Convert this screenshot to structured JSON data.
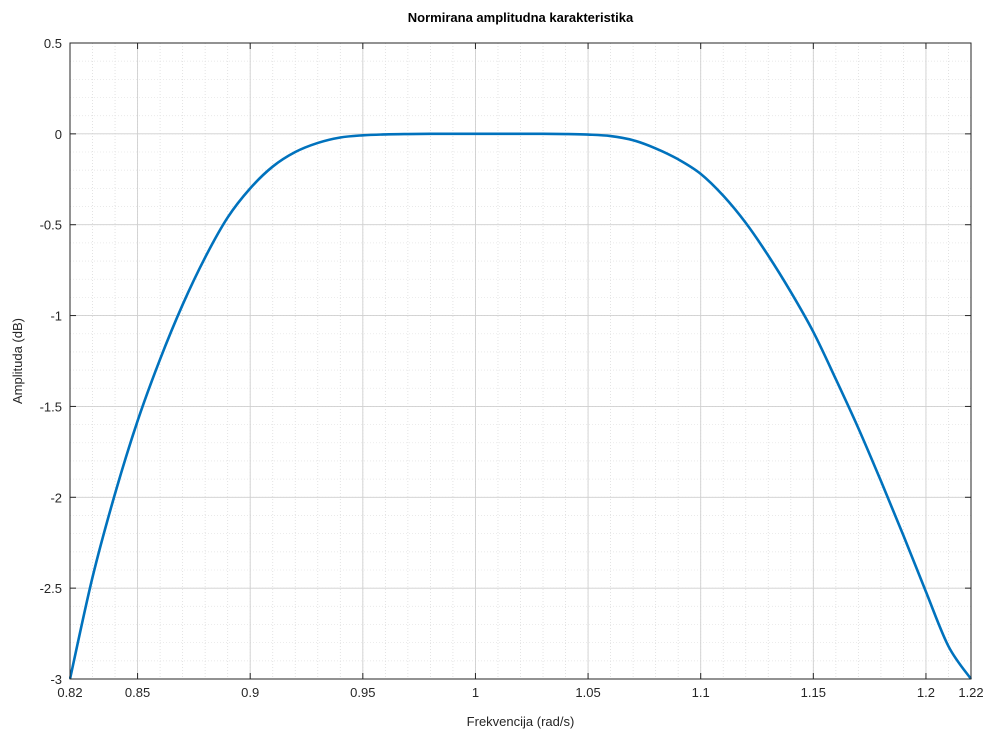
{
  "chart_data": {
    "type": "line",
    "title": "Normirana amplitudna karakteristika",
    "xlabel": "Frekvencija  (rad/s)",
    "ylabel": "Amplituda (dB)",
    "xlim": [
      0.82,
      1.22
    ],
    "ylim": [
      -3,
      0.5
    ],
    "x_ticks": [
      0.82,
      0.85,
      0.9,
      0.95,
      1,
      1.05,
      1.1,
      1.15,
      1.2,
      1.22
    ],
    "x_tick_labels": [
      "0.82",
      "0.85",
      "0.9",
      "0.95",
      "1",
      "1.05",
      "1.1",
      "1.15",
      "1.2",
      "1.22"
    ],
    "y_ticks": [
      0.5,
      0,
      -0.5,
      -1,
      -1.5,
      -2,
      -2.5,
      -3
    ],
    "y_tick_labels": [
      "0.5",
      "0",
      "-0.5",
      "-1",
      "-1.5",
      "-2",
      "-2.5",
      "-3"
    ],
    "grid": true,
    "minor_grid": true,
    "line_color": "#0072BD",
    "series": [
      {
        "x": [
          0.82,
          0.83,
          0.84,
          0.85,
          0.86,
          0.87,
          0.88,
          0.89,
          0.9,
          0.91,
          0.92,
          0.93,
          0.94,
          0.95,
          0.96,
          0.97,
          0.98,
          0.99,
          1.0,
          1.01,
          1.02,
          1.03,
          1.04,
          1.05,
          1.06,
          1.07,
          1.08,
          1.09,
          1.1,
          1.11,
          1.12,
          1.13,
          1.14,
          1.15,
          1.16,
          1.17,
          1.18,
          1.19,
          1.2,
          1.21,
          1.22
        ],
        "y": [
          -3.0,
          -2.44,
          -1.98,
          -1.58,
          -1.24,
          -0.94,
          -0.68,
          -0.46,
          -0.3,
          -0.18,
          -0.1,
          -0.05,
          -0.02,
          -0.008,
          -0.003,
          -0.001,
          0.0,
          0.0,
          0.0,
          0.0,
          0.0,
          0.0,
          -0.001,
          -0.004,
          -0.012,
          -0.035,
          -0.08,
          -0.14,
          -0.22,
          -0.34,
          -0.49,
          -0.67,
          -0.87,
          -1.09,
          -1.35,
          -1.62,
          -1.91,
          -2.21,
          -2.52,
          -2.82,
          -3.0
        ]
      }
    ]
  }
}
